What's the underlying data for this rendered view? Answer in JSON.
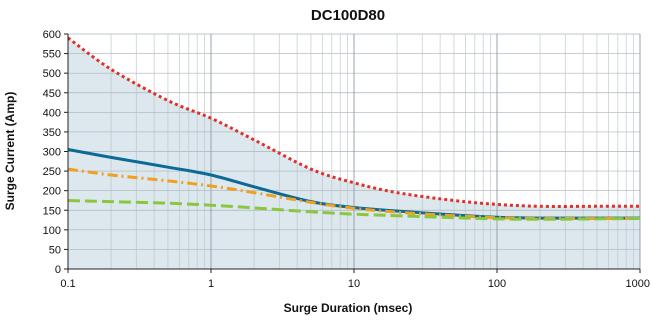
{
  "chart_data": {
    "type": "line",
    "title": "DC100D80",
    "xlabel": "Surge Duration (msec)",
    "ylabel": "Surge Current (Amp)",
    "xscale": "log",
    "xlim": [
      0.1,
      1000
    ],
    "ylim": [
      0,
      600
    ],
    "xticks": [
      0.1,
      1,
      10,
      100,
      1000
    ],
    "xtick_labels": [
      "0.1",
      "1",
      "10",
      "100",
      "1000"
    ],
    "yticks": [
      0,
      50,
      100,
      150,
      200,
      250,
      300,
      350,
      400,
      450,
      500,
      550,
      600
    ],
    "ytick_labels": [
      "0",
      "50",
      "100",
      "150",
      "200",
      "250",
      "300",
      "350",
      "400",
      "450",
      "500",
      "550",
      "600"
    ],
    "grid": true,
    "legend": "none",
    "shaded_region": {
      "upper_series": 0,
      "color": "#dce8ee"
    },
    "series": [
      {
        "color": "#e0302a",
        "dash": "dotted",
        "x": [
          0.1,
          0.2,
          0.5,
          1,
          2,
          5,
          10,
          20,
          50,
          100,
          200,
          500,
          1000
        ],
        "y": [
          590,
          510,
          430,
          385,
          330,
          255,
          220,
          195,
          175,
          165,
          160,
          160,
          160
        ]
      },
      {
        "color": "#0c6a96",
        "dash": "solid",
        "x": [
          0.1,
          0.2,
          0.5,
          1,
          2,
          5,
          10,
          20,
          50,
          100,
          200,
          500,
          1000
        ],
        "y": [
          305,
          285,
          260,
          240,
          210,
          172,
          157,
          148,
          138,
          132,
          130,
          130,
          130
        ]
      },
      {
        "color": "#f0a020",
        "dash": "dashdot",
        "x": [
          0.1,
          0.2,
          0.5,
          1,
          2,
          5,
          10,
          20,
          50,
          100,
          200,
          500,
          1000
        ],
        "y": [
          255,
          240,
          225,
          212,
          195,
          170,
          155,
          145,
          136,
          131,
          129,
          129,
          129
        ]
      },
      {
        "color": "#8cc63e",
        "dash": "dashed",
        "x": [
          0.1,
          0.2,
          0.5,
          1,
          2,
          5,
          10,
          20,
          50,
          100,
          200,
          500,
          1000
        ],
        "y": [
          175,
          172,
          168,
          163,
          156,
          146,
          140,
          136,
          131,
          128,
          127,
          128,
          129
        ]
      }
    ]
  }
}
